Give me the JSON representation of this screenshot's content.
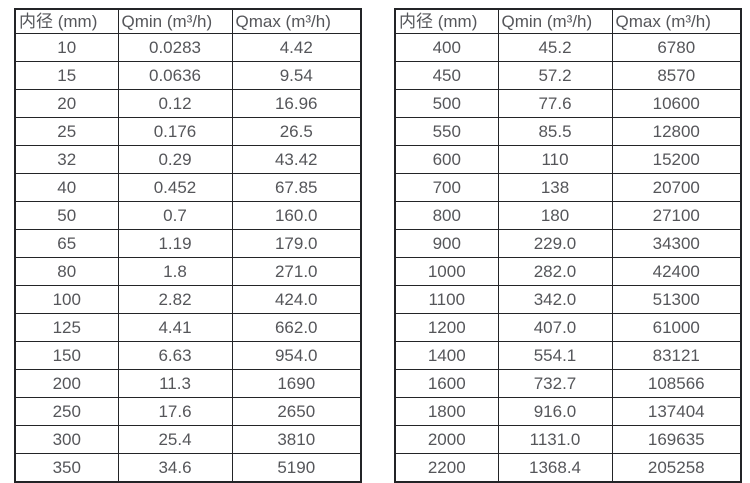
{
  "colors": {
    "background": "#ffffff",
    "border": "#232427",
    "text": "#55565a"
  },
  "tables": [
    {
      "name": "flow-rate-table-dn10-350",
      "headers": [
        "内径 (mm)",
        "Qmin (m³/h)",
        "Qmax (m³/h)"
      ],
      "rows": [
        [
          "10",
          "0.0283",
          "4.42"
        ],
        [
          "15",
          "0.0636",
          "9.54"
        ],
        [
          "20",
          "0.12",
          "16.96"
        ],
        [
          "25",
          "0.176",
          "26.5"
        ],
        [
          "32",
          "0.29",
          "43.42"
        ],
        [
          "40",
          "0.452",
          "67.85"
        ],
        [
          "50",
          "0.7",
          "160.0"
        ],
        [
          "65",
          "1.19",
          "179.0"
        ],
        [
          "80",
          "1.8",
          "271.0"
        ],
        [
          "100",
          "2.82",
          "424.0"
        ],
        [
          "125",
          "4.41",
          "662.0"
        ],
        [
          "150",
          "6.63",
          "954.0"
        ],
        [
          "200",
          "11.3",
          "1690"
        ],
        [
          "250",
          "17.6",
          "2650"
        ],
        [
          "300",
          "25.4",
          "3810"
        ],
        [
          "350",
          "34.6",
          "5190"
        ]
      ]
    },
    {
      "name": "flow-rate-table-dn400-2200",
      "headers": [
        "内径 (mm)",
        "Qmin (m³/h)",
        "Qmax (m³/h)"
      ],
      "rows": [
        [
          "400",
          "45.2",
          "6780"
        ],
        [
          "450",
          "57.2",
          "8570"
        ],
        [
          "500",
          "77.6",
          "10600"
        ],
        [
          "550",
          "85.5",
          "12800"
        ],
        [
          "600",
          "110",
          "15200"
        ],
        [
          "700",
          "138",
          "20700"
        ],
        [
          "800",
          "180",
          "27100"
        ],
        [
          "900",
          "229.0",
          "34300"
        ],
        [
          "1000",
          "282.0",
          "42400"
        ],
        [
          "1100",
          "342.0",
          "51300"
        ],
        [
          "1200",
          "407.0",
          "61000"
        ],
        [
          "1400",
          "554.1",
          "83121"
        ],
        [
          "1600",
          "732.7",
          "108566"
        ],
        [
          "1800",
          "916.0",
          "137404"
        ],
        [
          "2000",
          "1131.0",
          "169635"
        ],
        [
          "2200",
          "1368.4",
          "205258"
        ]
      ]
    }
  ]
}
